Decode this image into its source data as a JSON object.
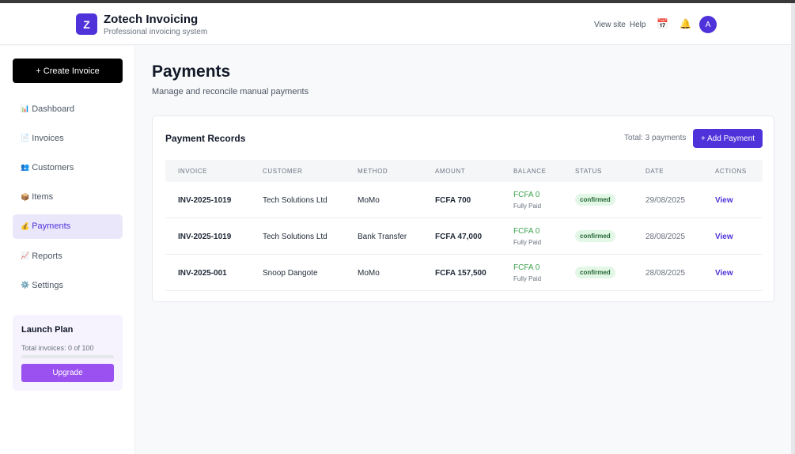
{
  "header": {
    "logo_letter": "Z",
    "brand": "Zotech Invoicing",
    "tagline": "Professional invoicing system",
    "links": [
      "View site",
      "Help"
    ],
    "avatar": "A",
    "calendar_icon": "📅",
    "bell_icon": "🔔"
  },
  "sidebar": {
    "create_label": "+ Create Invoice",
    "items": [
      {
        "icon": "📊",
        "label": "Dashboard"
      },
      {
        "icon": "📄",
        "label": "Invoices"
      },
      {
        "icon": "👥",
        "label": "Customers"
      },
      {
        "icon": "📦",
        "label": "Items"
      },
      {
        "icon": "💰",
        "label": "Payments",
        "active": true
      },
      {
        "icon": "📈",
        "label": "Reports"
      },
      {
        "icon": "⚙️",
        "label": "Settings"
      }
    ],
    "plan": {
      "title": "Launch Plan",
      "usage": "Total invoices: 0 of 100",
      "progress": 0,
      "upgrade": "Upgrade"
    }
  },
  "page": {
    "title": "Payments",
    "subtitle": "Manage and reconcile manual payments"
  },
  "card": {
    "title": "Payment Records",
    "total": "Total: 3 payments",
    "add_label": "+ Add Payment",
    "columns": [
      "INVOICE",
      "CUSTOMER",
      "METHOD",
      "AMOUNT",
      "BALANCE",
      "STATUS",
      "DATE",
      "ACTIONS"
    ],
    "rows": [
      {
        "invoice": "INV-2025-1019",
        "customer": "Tech Solutions Ltd",
        "method": "MoMo",
        "amount": "FCFA 700",
        "balance": "FCFA 0",
        "balance_note": "Fully Paid",
        "status": "confirmed",
        "date": "29/08/2025",
        "action": "View"
      },
      {
        "invoice": "INV-2025-1019",
        "customer": "Tech Solutions Ltd",
        "method": "Bank Transfer",
        "amount": "FCFA 47,000",
        "balance": "FCFA 0",
        "balance_note": "Fully Paid",
        "status": "confirmed",
        "date": "28/08/2025",
        "action": "View"
      },
      {
        "invoice": "INV-2025-001",
        "customer": "Snoop Dangote",
        "method": "MoMo",
        "amount": "FCFA 157,500",
        "balance": "FCFA 0",
        "balance_note": "Fully Paid",
        "status": "confirmed",
        "date": "28/08/2025",
        "action": "View"
      }
    ]
  },
  "colors": {
    "accent": "#4f32d9",
    "plan": "#9b51f0",
    "success": "#3fa14f"
  }
}
